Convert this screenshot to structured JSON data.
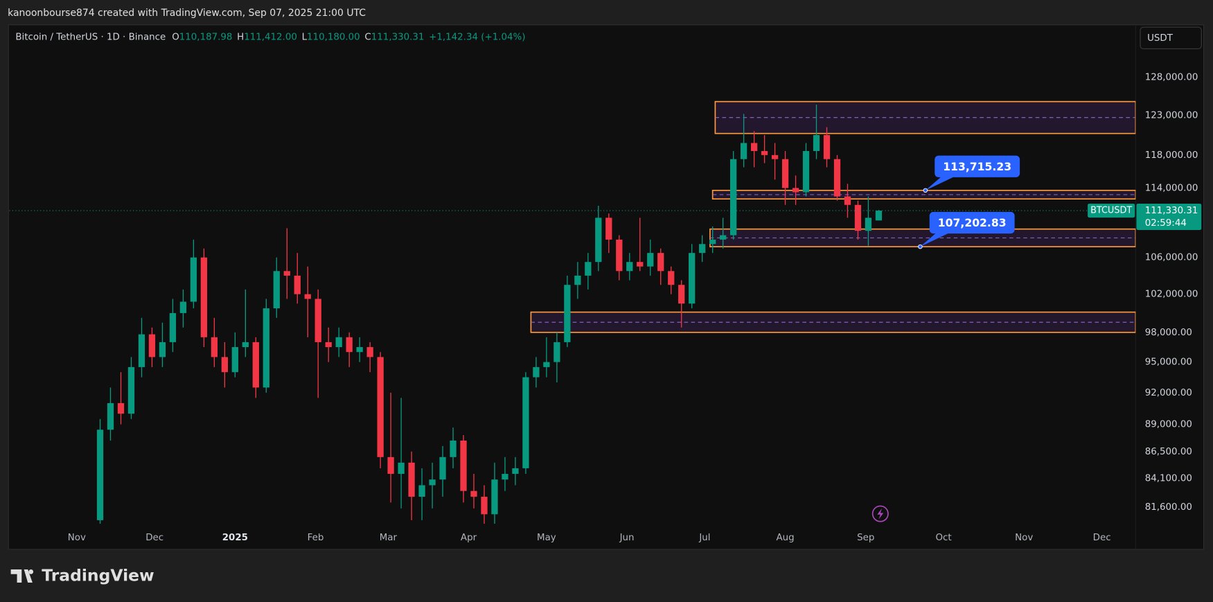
{
  "header": {
    "caption": "kanoonbourse874 created with TradingView.com, Sep 07, 2025 21:00 UTC",
    "symbol_line": "Bitcoin / TetherUS · 1D · Binance",
    "ohlc": [
      {
        "key": "O",
        "value": "110,187.98"
      },
      {
        "key": "H",
        "value": "111,412.00"
      },
      {
        "key": "L",
        "value": "110,180.00"
      },
      {
        "key": "C",
        "value": "111,330.31"
      }
    ],
    "change": "+1,142.34 (+1.04%)",
    "currency": "USDT"
  },
  "chart_data": {
    "type": "candlestick",
    "log": true,
    "grid": false,
    "up_color": "#089981",
    "down_color": "#f23645",
    "xlim": [
      -26,
      408
    ],
    "xticks": [
      {
        "value": 0,
        "label": "Nov"
      },
      {
        "value": 30,
        "label": "Dec"
      },
      {
        "value": 61,
        "label": "2025"
      },
      {
        "value": 92,
        "label": "Feb"
      },
      {
        "value": 120,
        "label": "Mar"
      },
      {
        "value": 151,
        "label": "Apr"
      },
      {
        "value": 181,
        "label": "May"
      },
      {
        "value": 212,
        "label": "Jun"
      },
      {
        "value": 242,
        "label": "Jul"
      },
      {
        "value": 273,
        "label": "Aug"
      },
      {
        "value": 304,
        "label": "Sep"
      },
      {
        "value": 334,
        "label": "Oct"
      },
      {
        "value": 365,
        "label": "Nov"
      },
      {
        "value": 395,
        "label": "Dec"
      }
    ],
    "ylim": [
      80000,
      132000
    ],
    "yticks": [
      {
        "value": 128000,
        "label": "128,000.00"
      },
      {
        "value": 123000,
        "label": "123,000.00"
      },
      {
        "value": 118000,
        "label": "118,000.00"
      },
      {
        "value": 114000,
        "label": "114,000.00"
      },
      {
        "value": 106000,
        "label": "106,000.00"
      },
      {
        "value": 102000,
        "label": "102,000.00"
      },
      {
        "value": 98000,
        "label": "98,000.00"
      },
      {
        "value": 95000,
        "label": "95,000.00"
      },
      {
        "value": 92000,
        "label": "92,000.00"
      },
      {
        "value": 89000,
        "label": "89,000.00"
      },
      {
        "value": 86500,
        "label": "86,500.00"
      },
      {
        "value": 84100,
        "label": "84,100.00"
      },
      {
        "value": 81600,
        "label": "81,600.00"
      }
    ],
    "x": [
      9,
      13,
      17,
      21,
      25,
      29,
      33,
      37,
      41,
      45,
      49,
      53,
      57,
      61,
      65,
      69,
      73,
      77,
      81,
      85,
      89,
      93,
      97,
      101,
      105,
      109,
      113,
      117,
      121,
      125,
      129,
      133,
      137,
      141,
      145,
      149,
      153,
      157,
      161,
      165,
      169,
      173,
      177,
      181,
      185,
      189,
      193,
      197,
      201,
      205,
      209,
      213,
      217,
      221,
      225,
      229,
      233,
      237,
      241,
      245,
      249,
      253,
      257,
      261,
      265,
      269,
      273,
      277,
      281,
      285,
      289,
      293,
      297,
      301,
      305,
      309
    ],
    "open": [
      80500,
      88500,
      91000,
      90000,
      94500,
      97800,
      95500,
      97000,
      100000,
      101200,
      106000,
      97500,
      95500,
      94000,
      96500,
      97000,
      92500,
      100500,
      104500,
      104000,
      102000,
      101500,
      97000,
      96500,
      97500,
      96000,
      96500,
      95500,
      86000,
      84500,
      85500,
      82500,
      83500,
      84000,
      86000,
      87500,
      83000,
      82500,
      81000,
      84000,
      84500,
      85000,
      93500,
      94500,
      95000,
      97000,
      103000,
      104000,
      105500,
      110500,
      108000,
      104500,
      105500,
      105000,
      106500,
      104500,
      103000,
      101000,
      106500,
      107500,
      108000,
      108500,
      117500,
      119500,
      118500,
      118000,
      117500,
      114000,
      113500,
      118500,
      120500,
      117500,
      113000,
      112000,
      109000,
      110187.98
    ],
    "high": [
      89500,
      92500,
      94000,
      95500,
      99500,
      98500,
      99000,
      101500,
      102500,
      108000,
      107000,
      99500,
      97000,
      98000,
      102500,
      97500,
      101500,
      106000,
      109300,
      106500,
      105000,
      102500,
      98500,
      98500,
      98000,
      97500,
      97000,
      96000,
      92000,
      91500,
      86500,
      85000,
      85500,
      87000,
      88700,
      88000,
      84500,
      83500,
      85500,
      86000,
      86000,
      94000,
      95500,
      97500,
      98000,
      104000,
      105500,
      106500,
      111900,
      111000,
      108500,
      106500,
      110500,
      108000,
      107000,
      105000,
      103500,
      107500,
      108500,
      109500,
      110500,
      118500,
      123200,
      121000,
      120500,
      119500,
      118500,
      115500,
      119500,
      124400,
      121500,
      118000,
      114500,
      112500,
      113000,
      111412
    ],
    "low": [
      80200,
      87500,
      89000,
      89500,
      93500,
      94500,
      94500,
      96000,
      98500,
      100500,
      96500,
      94500,
      92500,
      93500,
      95500,
      91500,
      92000,
      99500,
      101500,
      101000,
      97500,
      91500,
      95000,
      95500,
      94500,
      95000,
      94000,
      85000,
      82000,
      81500,
      80500,
      80500,
      81500,
      82500,
      85000,
      82000,
      81500,
      80200,
      80200,
      83000,
      83500,
      84500,
      92500,
      93500,
      93000,
      96500,
      101500,
      102500,
      104500,
      106500,
      103500,
      103500,
      104500,
      104000,
      103000,
      102000,
      98500,
      100500,
      105500,
      106500,
      107000,
      108000,
      116500,
      116500,
      117000,
      115000,
      112000,
      112000,
      113000,
      117500,
      116500,
      112500,
      110500,
      108000,
      107300,
      110180
    ],
    "close": [
      88500,
      91000,
      90000,
      94500,
      97800,
      95500,
      97000,
      100000,
      101200,
      106000,
      97500,
      95500,
      94000,
      96500,
      97000,
      92500,
      100500,
      104500,
      104000,
      102000,
      101500,
      97000,
      96500,
      97500,
      96000,
      96500,
      95500,
      86000,
      84500,
      85500,
      82500,
      83500,
      84000,
      86000,
      87500,
      83000,
      82500,
      81000,
      84000,
      84500,
      85000,
      93500,
      94500,
      95000,
      97000,
      103000,
      104000,
      105500,
      110500,
      108000,
      104500,
      105500,
      105000,
      106500,
      104500,
      103000,
      101000,
      106500,
      107500,
      108000,
      108500,
      117500,
      119500,
      118500,
      118000,
      117500,
      114000,
      113500,
      118500,
      120500,
      117500,
      113000,
      112000,
      109000,
      110500,
      111330.31
    ],
    "zones": [
      {
        "x0": 246,
        "top": 124800,
        "bottom": 120700,
        "color": "#ff9a3c"
      },
      {
        "x0": 245,
        "top": 113715.23,
        "bottom": 112700,
        "color": "#ff9a3c"
      },
      {
        "x0": 244,
        "top": 109200,
        "bottom": 107202.83,
        "color": "#ff9a3c"
      },
      {
        "x0": 175,
        "top": 100100,
        "bottom": 98000,
        "color": "#ff9a3c"
      }
    ],
    "annotations": [
      {
        "x": 327,
        "value": 113715.23,
        "label": "113,715.23",
        "color": "#2962ff"
      },
      {
        "x": 325,
        "value": 107202.83,
        "label": "107,202.83",
        "color": "#2962ff"
      }
    ],
    "last_price": {
      "symbol": "BTCUSDT",
      "label": "111,330.31",
      "countdown": "02:59:44"
    }
  },
  "footer": {
    "brand": "TradingView"
  }
}
